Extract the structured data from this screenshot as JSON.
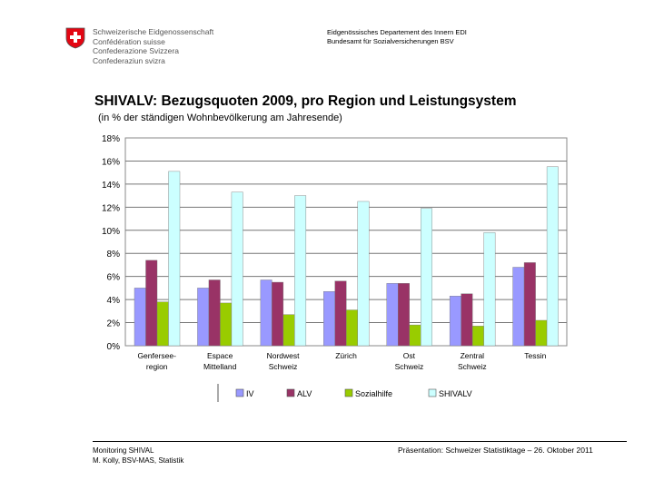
{
  "header": {
    "confederation_lines": [
      "Schweizerische Eidgenossenschaft",
      "Confédération suisse",
      "Confederazione Svizzera",
      "Confederaziun svizra"
    ],
    "department_lines": [
      "Eidgenössisches Departement des Innern EDI",
      "Bundesamt für Sozialversicherungen BSV"
    ]
  },
  "colors": {
    "swiss_red": "#e30613",
    "plot_border": "#888888",
    "grid": "#777777"
  },
  "chart_data": {
    "type": "bar",
    "title": "SHIVALV: Bezugsquoten 2009, pro Region und Leistungsystem",
    "subtitle": "(in % der ständigen Wohnbevölkerung am Jahresende)",
    "categories": [
      [
        "Genfersee-",
        "region"
      ],
      [
        "Espace",
        "Mittelland"
      ],
      [
        "Nordwest",
        "Schweiz"
      ],
      [
        "Zürich"
      ],
      [
        "Ost",
        "Schweiz"
      ],
      [
        "Zentral",
        "Schweiz"
      ],
      [
        "Tessin"
      ]
    ],
    "series": [
      {
        "name": "IV",
        "color": "#9999ff",
        "values": [
          5.0,
          5.0,
          5.7,
          4.7,
          5.4,
          4.3,
          6.8
        ]
      },
      {
        "name": "ALV",
        "color": "#993366",
        "values": [
          7.4,
          5.7,
          5.5,
          5.6,
          5.4,
          4.5,
          7.2
        ]
      },
      {
        "name": "Sozialhilfe",
        "color": "#99cc00",
        "values": [
          3.8,
          3.7,
          2.7,
          3.1,
          1.8,
          1.7,
          2.2
        ]
      },
      {
        "name": "SHIVALV",
        "color": "#ccffff",
        "values": [
          15.1,
          13.3,
          13.0,
          12.5,
          11.9,
          9.8,
          15.5
        ]
      }
    ],
    "ylim": [
      0,
      18
    ],
    "yticks": [
      "0%",
      "2%",
      "4%",
      "6%",
      "8%",
      "10%",
      "12%",
      "14%",
      "16%",
      "18%"
    ],
    "grid": true,
    "legend_position": "bottom"
  },
  "footer": {
    "left_lines": [
      "Monitoring SHIVAL",
      "M. Kolly, BSV-MAS, Statistik"
    ],
    "right": "Präsentation: Schweizer Statistiktage – 26. Oktober 2011"
  }
}
